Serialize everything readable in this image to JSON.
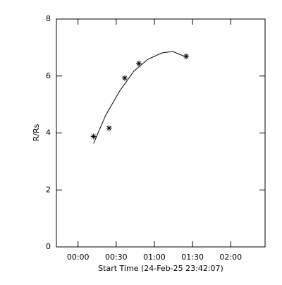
{
  "chart_data": {
    "type": "scatter",
    "x_label": "Start Time (24-Feb-25 23:42:07)",
    "y_label": "R/Rs",
    "xlim": [
      -17,
      147
    ],
    "ylim": [
      0,
      8
    ],
    "xticks": [
      {
        "value": 0,
        "label": "00:00"
      },
      {
        "value": 30,
        "label": "00:30"
      },
      {
        "value": 60,
        "label": "01:00"
      },
      {
        "value": 90,
        "label": "01:30"
      },
      {
        "value": 120,
        "label": "02:00"
      }
    ],
    "yticks": [
      0,
      2,
      4,
      6,
      8
    ],
    "color": "#000000",
    "series": [
      {
        "kind": "points",
        "x": [
          12.2,
          24.4,
          36.7,
          47.8,
          85
        ],
        "values": [
          3.88,
          4.17,
          5.93,
          6.44,
          6.69
        ]
      },
      {
        "kind": "curve",
        "x": [
          12.2,
          21.7,
          32.8,
          43.9,
          55,
          66,
          74.4,
          85
        ],
        "values": [
          3.63,
          4.62,
          5.48,
          6.17,
          6.59,
          6.81,
          6.86,
          6.67
        ]
      }
    ]
  }
}
